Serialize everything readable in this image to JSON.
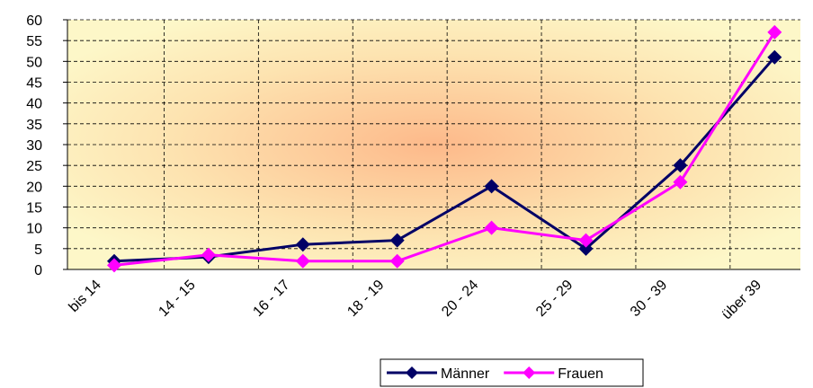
{
  "chart_data": {
    "type": "line",
    "categories": [
      "bis 14",
      "14 - 15",
      "16 - 17",
      "18 - 19",
      "20 - 24",
      "25 - 29",
      "30 - 39",
      "über 39"
    ],
    "series": [
      {
        "name": "Männer",
        "color": "#000066",
        "values": [
          2,
          3,
          6,
          7,
          20,
          5,
          25,
          51
        ]
      },
      {
        "name": "Frauen",
        "color": "#ff00ff",
        "values": [
          1,
          3.5,
          2,
          2,
          10,
          7,
          21,
          57
        ]
      }
    ],
    "ylim": [
      0,
      60
    ],
    "yticks": [
      0,
      5,
      10,
      15,
      20,
      25,
      30,
      35,
      40,
      45,
      50,
      55,
      60
    ],
    "grid": true,
    "legend": "bottom"
  }
}
